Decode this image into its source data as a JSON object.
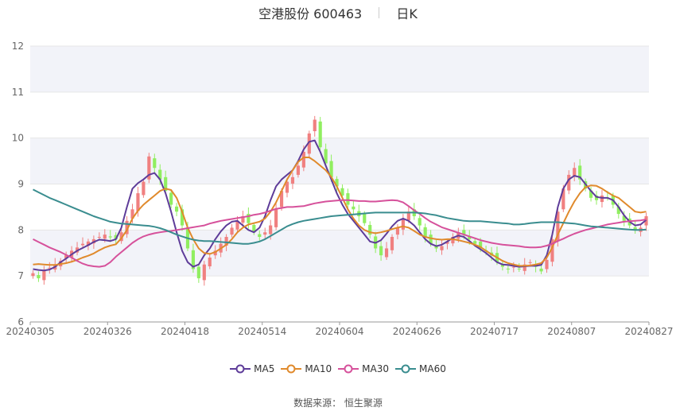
{
  "header": {
    "title": "空港股份 600463",
    "period": "日K"
  },
  "legend": [
    {
      "name": "MA5",
      "color": "#5e3c99"
    },
    {
      "name": "MA10",
      "color": "#e08a2c"
    },
    {
      "name": "MA30",
      "color": "#d6519b"
    },
    {
      "name": "MA60",
      "color": "#3a8d8f"
    }
  ],
  "source": {
    "label": "数据来源：",
    "value": "恒生聚源"
  },
  "colors": {
    "up": "#f08080",
    "down": "#90ee60",
    "band": "#f2f3f9",
    "grid": "#e6e6e6"
  },
  "chart_data": {
    "type": "candlestick",
    "ylim": [
      6,
      12
    ],
    "yticks": [
      "6",
      "7",
      "8",
      "9",
      "10",
      "11",
      "12"
    ],
    "x_tick_labels": [
      "20240305",
      "20240326",
      "20240418",
      "20240514",
      "20240604",
      "20240626",
      "20240717",
      "20240807",
      "20240827"
    ],
    "close": [
      7.06,
      6.95,
      7.12,
      7.18,
      7.25,
      7.33,
      7.45,
      7.55,
      7.62,
      7.7,
      7.75,
      7.8,
      7.85,
      7.9,
      7.84,
      7.8,
      7.95,
      8.2,
      8.45,
      8.8,
      9.05,
      9.6,
      9.35,
      9.1,
      8.85,
      8.55,
      8.4,
      8.1,
      7.6,
      7.15,
      6.95,
      7.25,
      7.4,
      7.55,
      7.7,
      7.85,
      8.05,
      8.2,
      8.3,
      8.15,
      7.95,
      7.85,
      7.95,
      8.1,
      8.45,
      8.85,
      9.05,
      9.15,
      9.4,
      9.7,
      10.1,
      10.4,
      9.8,
      9.45,
      9.15,
      8.95,
      8.75,
      8.55,
      8.45,
      8.3,
      8.15,
      7.9,
      7.6,
      7.45,
      7.6,
      7.85,
      8.05,
      8.25,
      8.4,
      8.3,
      8.1,
      7.85,
      7.7,
      7.6,
      7.65,
      7.75,
      7.85,
      7.95,
      7.9,
      7.8,
      7.7,
      7.6,
      7.55,
      7.45,
      7.3,
      7.2,
      7.15,
      7.2,
      7.15,
      7.25,
      7.3,
      7.2,
      7.1,
      7.35,
      7.8,
      8.4,
      8.9,
      9.2,
      9.35,
      9.1,
      8.9,
      8.7,
      8.65,
      8.75,
      8.7,
      8.55,
      8.35,
      8.2,
      8.1,
      8.0,
      8.05,
      8.3
    ],
    "series": [
      {
        "name": "MA5",
        "values": [
          7.15,
          7.13,
          7.12,
          7.14,
          7.2,
          7.3,
          7.38,
          7.47,
          7.55,
          7.61,
          7.67,
          7.74,
          7.79,
          7.78,
          7.76,
          7.8,
          8.05,
          8.5,
          8.9,
          9.02,
          9.1,
          9.2,
          9.24,
          9.1,
          8.8,
          8.4,
          7.95,
          7.55,
          7.3,
          7.2,
          7.25,
          7.45,
          7.6,
          7.8,
          7.97,
          8.1,
          8.18,
          8.2,
          8.1,
          8.0,
          7.95,
          8.05,
          8.3,
          8.65,
          8.95,
          9.1,
          9.2,
          9.3,
          9.5,
          9.75,
          9.92,
          9.95,
          9.7,
          9.4,
          9.1,
          8.8,
          8.55,
          8.35,
          8.2,
          8.05,
          7.9,
          7.75,
          7.72,
          7.78,
          7.92,
          8.08,
          8.2,
          8.25,
          8.2,
          8.1,
          7.95,
          7.8,
          7.7,
          7.65,
          7.68,
          7.75,
          7.83,
          7.88,
          7.85,
          7.76,
          7.66,
          7.58,
          7.5,
          7.4,
          7.3,
          7.25,
          7.24,
          7.22,
          7.2,
          7.21,
          7.22,
          7.22,
          7.24,
          7.45,
          7.9,
          8.5,
          8.9,
          9.1,
          9.18,
          9.15,
          9.0,
          8.85,
          8.72,
          8.7,
          8.7,
          8.65,
          8.5,
          8.32,
          8.18,
          8.1,
          8.12,
          8.22
        ]
      },
      {
        "name": "MA10",
        "values": [
          7.25,
          7.26,
          7.25,
          7.24,
          7.24,
          7.26,
          7.28,
          7.31,
          7.35,
          7.4,
          7.44,
          7.49,
          7.56,
          7.62,
          7.66,
          7.69,
          7.82,
          8.0,
          8.25,
          8.42,
          8.55,
          8.65,
          8.75,
          8.85,
          8.9,
          8.87,
          8.7,
          8.4,
          8.05,
          7.8,
          7.6,
          7.5,
          7.48,
          7.52,
          7.6,
          7.68,
          7.8,
          7.95,
          8.05,
          8.12,
          8.15,
          8.18,
          8.25,
          8.4,
          8.6,
          8.85,
          9.1,
          9.3,
          9.48,
          9.58,
          9.58,
          9.5,
          9.4,
          9.3,
          9.15,
          8.95,
          8.7,
          8.45,
          8.25,
          8.1,
          8.0,
          7.95,
          7.93,
          7.95,
          7.98,
          8.02,
          8.05,
          8.08,
          8.05,
          7.98,
          7.9,
          7.85,
          7.82,
          7.8,
          7.79,
          7.8,
          7.8,
          7.78,
          7.75,
          7.72,
          7.68,
          7.63,
          7.55,
          7.47,
          7.4,
          7.33,
          7.28,
          7.25,
          7.22,
          7.22,
          7.23,
          7.25,
          7.28,
          7.4,
          7.62,
          7.9,
          8.15,
          8.4,
          8.62,
          8.8,
          8.93,
          8.97,
          8.96,
          8.9,
          8.82,
          8.75,
          8.7,
          8.6,
          8.5,
          8.4,
          8.38,
          8.4
        ]
      },
      {
        "name": "MA30",
        "values": [
          7.8,
          7.74,
          7.68,
          7.62,
          7.57,
          7.52,
          7.46,
          7.4,
          7.33,
          7.27,
          7.23,
          7.21,
          7.2,
          7.22,
          7.3,
          7.42,
          7.52,
          7.62,
          7.72,
          7.8,
          7.86,
          7.9,
          7.93,
          7.95,
          7.97,
          7.98,
          8.0,
          8.02,
          8.04,
          8.06,
          8.08,
          8.1,
          8.14,
          8.17,
          8.2,
          8.22,
          8.24,
          8.26,
          8.28,
          8.3,
          8.33,
          8.35,
          8.38,
          8.42,
          8.46,
          8.48,
          8.5,
          8.5,
          8.51,
          8.52,
          8.55,
          8.58,
          8.6,
          8.62,
          8.63,
          8.64,
          8.65,
          8.65,
          8.64,
          8.63,
          8.63,
          8.62,
          8.62,
          8.63,
          8.64,
          8.65,
          8.64,
          8.6,
          8.52,
          8.43,
          8.35,
          8.26,
          8.18,
          8.12,
          8.06,
          8.02,
          7.98,
          7.94,
          7.9,
          7.86,
          7.82,
          7.78,
          7.75,
          7.72,
          7.7,
          7.68,
          7.67,
          7.66,
          7.65,
          7.63,
          7.62,
          7.62,
          7.63,
          7.66,
          7.7,
          7.76,
          7.81,
          7.87,
          7.92,
          7.96,
          8.0,
          8.03,
          8.06,
          8.09,
          8.12,
          8.14,
          8.16,
          8.18,
          8.19,
          8.2,
          8.21,
          8.23
        ]
      },
      {
        "name": "MA60",
        "values": [
          8.88,
          8.82,
          8.76,
          8.7,
          8.65,
          8.6,
          8.55,
          8.5,
          8.45,
          8.4,
          8.35,
          8.3,
          8.26,
          8.22,
          8.18,
          8.16,
          8.14,
          8.13,
          8.12,
          8.11,
          8.1,
          8.09,
          8.07,
          8.04,
          8.0,
          7.95,
          7.9,
          7.86,
          7.82,
          7.79,
          7.77,
          7.76,
          7.76,
          7.75,
          7.74,
          7.73,
          7.72,
          7.71,
          7.7,
          7.7,
          7.72,
          7.75,
          7.8,
          7.87,
          7.94,
          8.01,
          8.08,
          8.13,
          8.17,
          8.2,
          8.22,
          8.24,
          8.26,
          8.28,
          8.3,
          8.31,
          8.32,
          8.33,
          8.34,
          8.35,
          8.36,
          8.37,
          8.38,
          8.38,
          8.38,
          8.38,
          8.38,
          8.38,
          8.38,
          8.38,
          8.37,
          8.36,
          8.34,
          8.32,
          8.29,
          8.26,
          8.24,
          8.22,
          8.2,
          8.19,
          8.19,
          8.19,
          8.18,
          8.17,
          8.16,
          8.15,
          8.14,
          8.12,
          8.12,
          8.13,
          8.15,
          8.16,
          8.17,
          8.17,
          8.17,
          8.17,
          8.16,
          8.15,
          8.14,
          8.12,
          8.1,
          8.08,
          8.07,
          8.06,
          8.05,
          8.04,
          8.03,
          8.02,
          8.01,
          8.0,
          8.0,
          8.01
        ]
      }
    ]
  }
}
